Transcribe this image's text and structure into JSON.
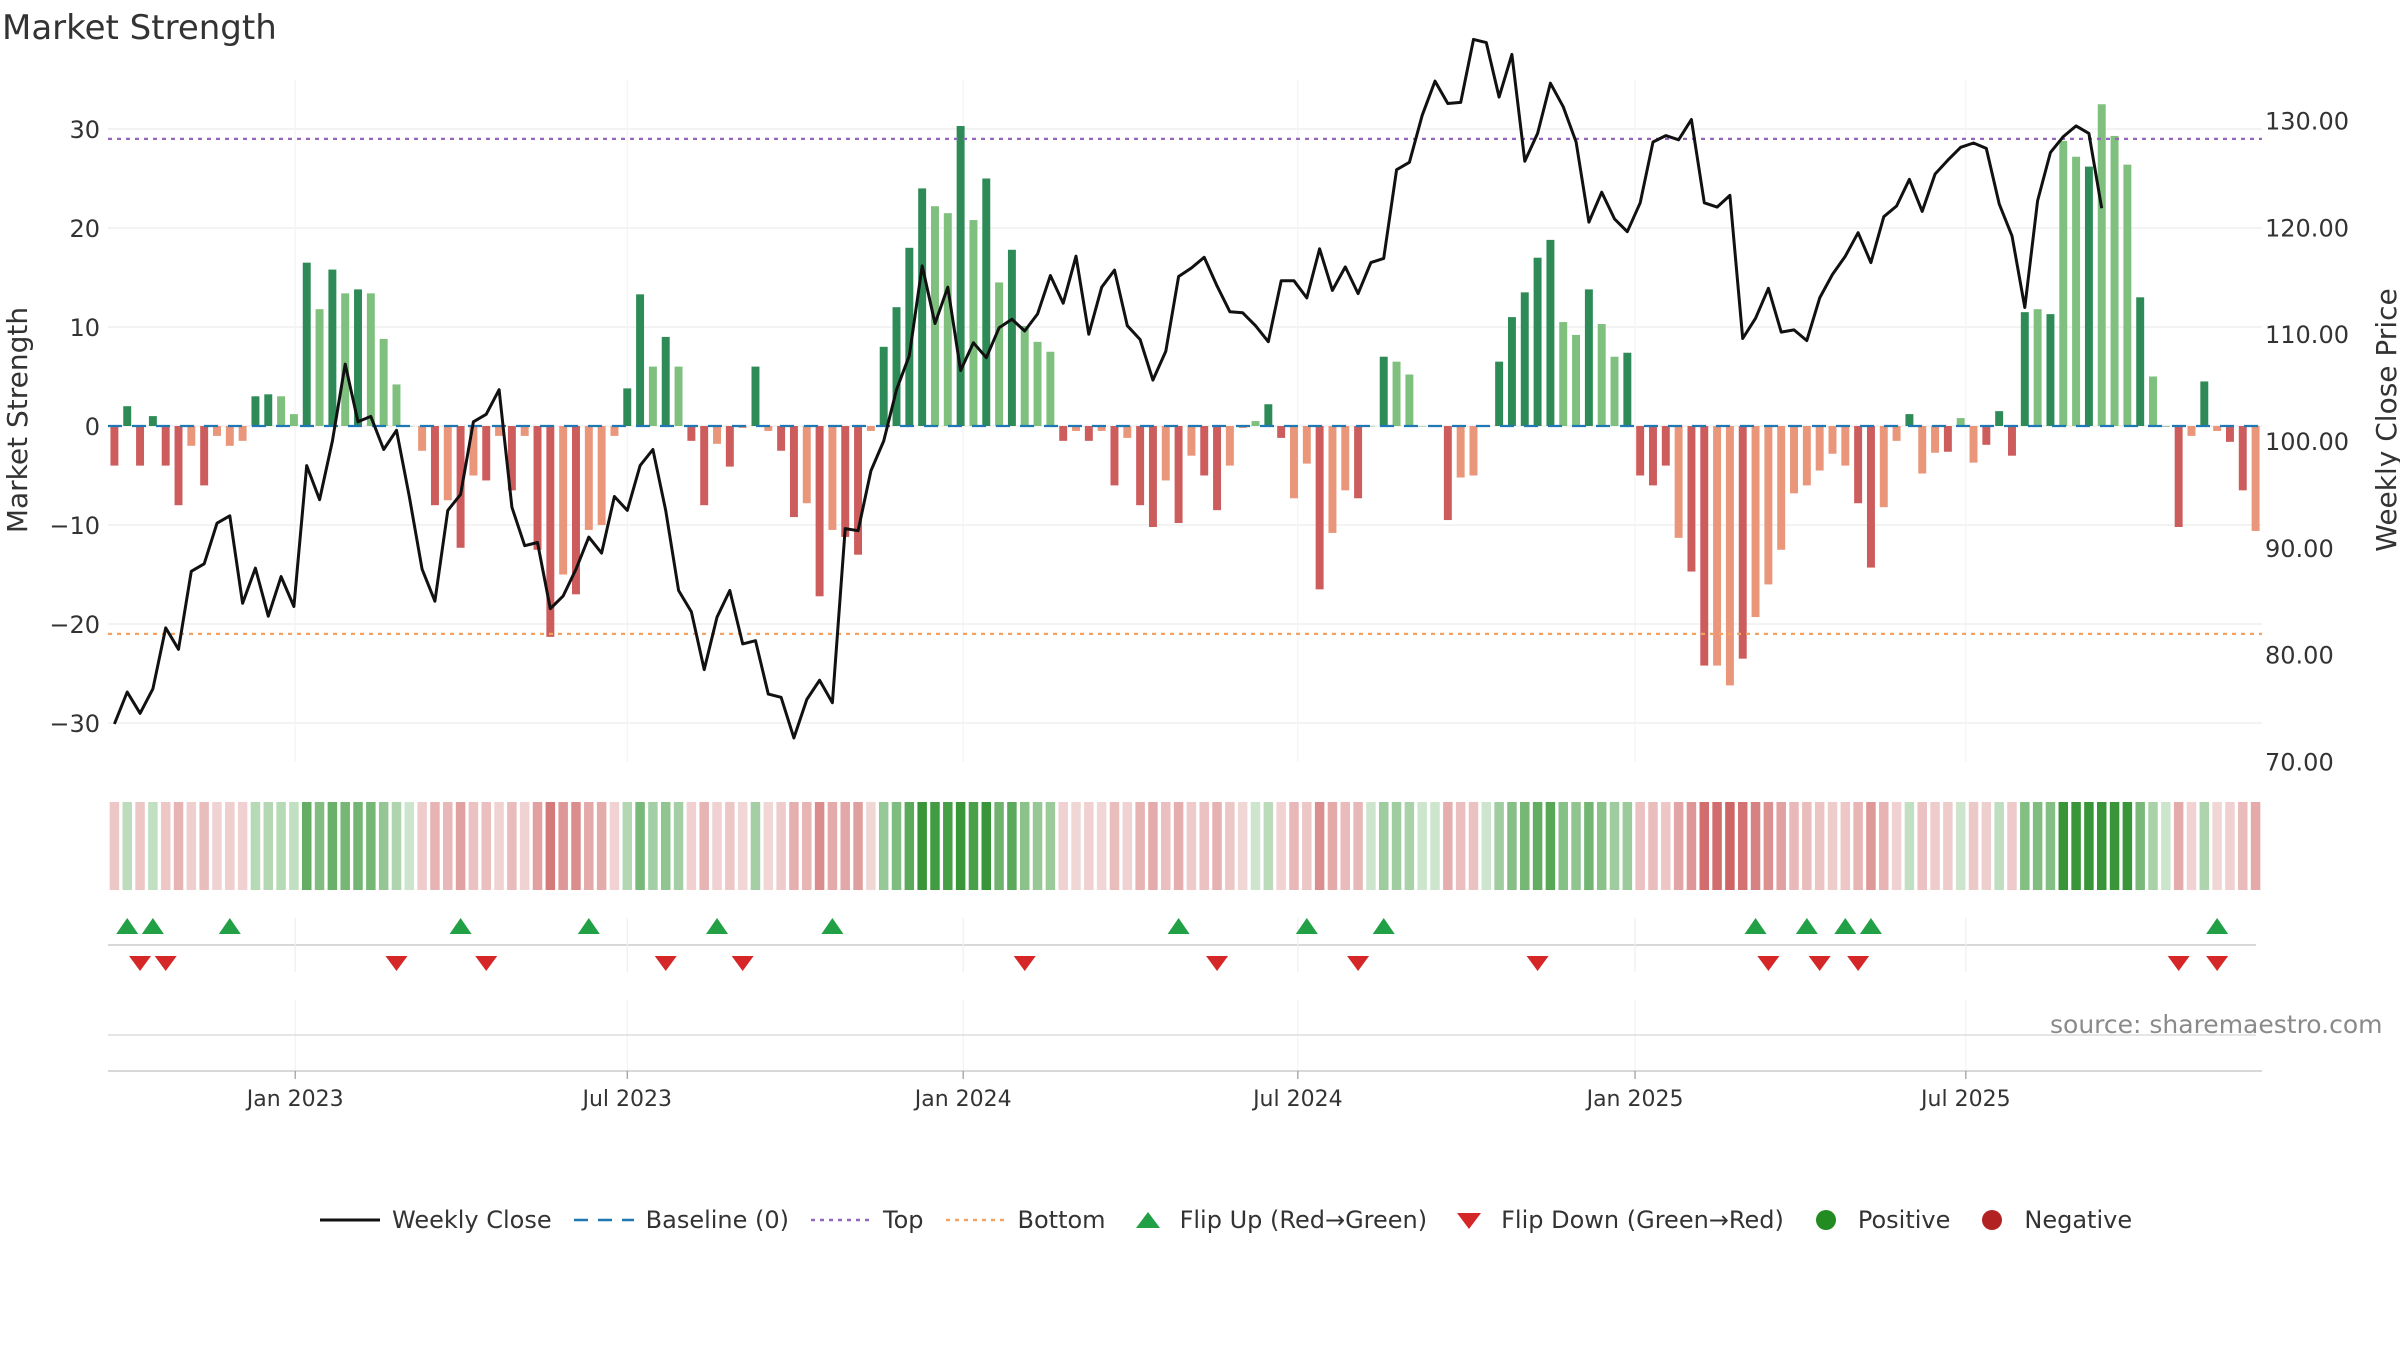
{
  "title": "Market Strength",
  "watermark": "source: sharemaestro.com",
  "colors": {
    "bar_strong_green": "#2e8b57",
    "bar_light_green": "#7fc07f",
    "bar_strong_red": "#cd5c5c",
    "bar_light_red": "#e9967a",
    "price_line": "#111111",
    "baseline": "#1f77b4",
    "top": "#9467bd",
    "bottom": "#f4a261",
    "flip_up": "#22a045",
    "flip_down": "#d62728",
    "positive": "#228b22",
    "negative": "#b22222"
  },
  "chart_data": {
    "type": "bar+line",
    "title": "Market Strength",
    "x_start": "2022-09-18",
    "x_interval": "weekly",
    "xlabel": "",
    "ylabel_left": "Market Strength",
    "ylabel_right": "Weekly Close Price",
    "ylim_left": [
      -35,
      35
    ],
    "ylim_right": [
      67,
      132
    ],
    "yticks_left": [
      30,
      20,
      10,
      0,
      -10,
      -20,
      -30
    ],
    "yticks_left_labels": [
      "30",
      "20",
      "10",
      "0",
      "−10",
      "−20",
      "−30"
    ],
    "yticks_right": [
      130,
      120,
      110,
      100,
      90,
      80,
      70
    ],
    "yticks_right_labels": [
      "130.00",
      "120.00",
      "110.00",
      "100.00",
      "90.00",
      "80.00",
      "70.00"
    ],
    "x_ticks": [
      {
        "label": "Jan 2023",
        "week": 14.6
      },
      {
        "label": "Jul 2023",
        "week": 40.5
      },
      {
        "label": "Jan 2024",
        "week": 66.7
      },
      {
        "label": "Jul 2024",
        "week": 92.8
      },
      {
        "label": "Jan 2025",
        "week": 119.1
      },
      {
        "label": "Jul 2025",
        "week": 144.9
      }
    ],
    "top_level": 29,
    "bottom_level": -21,
    "baseline": 0,
    "strength": [
      -4,
      2,
      -4,
      1,
      -4,
      -8,
      -2,
      -6,
      -1,
      -2,
      -1.5,
      3,
      3.2,
      3,
      1.2,
      16.5,
      11.8,
      15.8,
      13.4,
      13.8,
      13.4,
      8.8,
      4.2,
      0,
      -2.5,
      -8,
      -7.5,
      -12.3,
      -5,
      -5.5,
      -1,
      -6.5,
      -1,
      -12.5,
      -21.3,
      -15,
      -17,
      -10.5,
      -10,
      -1,
      3.8,
      13.3,
      6,
      9,
      6,
      -1.5,
      -8,
      -1.8,
      -4.1,
      -0.2,
      6,
      -0.5,
      -2.5,
      -9.2,
      -7.8,
      -17.2,
      -10.5,
      -11.2,
      -13,
      -0.5,
      8,
      12,
      18,
      24,
      22.2,
      21.5,
      30.3,
      20.8,
      25,
      14.5,
      17.8,
      10.1,
      8.5,
      7.5,
      -1.5,
      -0.5,
      -1.5,
      -0.5,
      -6,
      -1.2,
      -8,
      -10.2,
      -5.5,
      -9.8,
      -3,
      -5,
      -8.5,
      -4,
      -0.2,
      0.5,
      2.2,
      -1.2,
      -7.3,
      -3.8,
      -16.5,
      -10.8,
      -6.5,
      -7.3,
      0,
      7,
      6.5,
      5.2,
      0,
      0,
      -9.5,
      -5.2,
      -5,
      0,
      6.5,
      11,
      13.5,
      17,
      18.8,
      10.5,
      9.2,
      13.8,
      10.3,
      7,
      7.4,
      -5,
      -6,
      -4,
      -11.3,
      -14.7,
      -24.2,
      -24.2,
      -26.2,
      -23.5,
      -19.3,
      -16,
      -12.5,
      -6.8,
      -6,
      -4.5,
      -2.8,
      -4,
      -7.8,
      -14.3,
      -8.2,
      -1.5,
      1.2,
      -4.8,
      -2.7,
      -2.6,
      0.8,
      -3.7,
      -1.9,
      1.5,
      -3,
      11.5,
      11.8,
      11.3,
      28.8,
      27.2,
      26.2,
      32.5,
      29.3,
      26.4,
      13,
      5,
      0,
      -10.2,
      -1,
      4.5,
      -0.5,
      -1.6,
      -6.5,
      -10.6
    ],
    "bar_shade": [
      "strong",
      "strong",
      "strong",
      "strong",
      "strong",
      "strong",
      "light",
      "strong",
      "light",
      "light",
      "light",
      "strong",
      "strong",
      "light",
      "light",
      "strong",
      "light",
      "strong",
      "light",
      "strong",
      "light",
      "light",
      "light",
      "light",
      "light",
      "strong",
      "light",
      "strong",
      "light",
      "strong",
      "light",
      "strong",
      "light",
      "strong",
      "strong",
      "light",
      "strong",
      "light",
      "light",
      "light",
      "strong",
      "strong",
      "light",
      "strong",
      "light",
      "strong",
      "strong",
      "light",
      "strong",
      "light",
      "strong",
      "light",
      "strong",
      "strong",
      "light",
      "strong",
      "light",
      "strong",
      "strong",
      "light",
      "strong",
      "strong",
      "strong",
      "strong",
      "light",
      "light",
      "strong",
      "light",
      "strong",
      "light",
      "strong",
      "light",
      "light",
      "light",
      "strong",
      "light",
      "strong",
      "light",
      "strong",
      "light",
      "strong",
      "strong",
      "light",
      "strong",
      "light",
      "strong",
      "strong",
      "light",
      "light",
      "light",
      "strong",
      "strong",
      "light",
      "light",
      "strong",
      "light",
      "light",
      "strong",
      "light",
      "strong",
      "light",
      "light",
      "light",
      "light",
      "strong",
      "light",
      "light",
      "light",
      "strong",
      "strong",
      "strong",
      "strong",
      "strong",
      "light",
      "light",
      "strong",
      "light",
      "light",
      "strong",
      "strong",
      "strong",
      "strong",
      "light",
      "strong",
      "strong",
      "light",
      "light",
      "strong",
      "light",
      "light",
      "light",
      "light",
      "light",
      "light",
      "light",
      "light",
      "strong",
      "strong",
      "light",
      "light",
      "strong",
      "light",
      "light",
      "strong",
      "light",
      "light",
      "strong",
      "strong",
      "strong",
      "strong",
      "light",
      "strong",
      "light",
      "light",
      "strong",
      "light",
      "light",
      "light",
      "strong",
      "light",
      "strong",
      "strong",
      "light",
      "strong",
      "light",
      "strong",
      "strong"
    ],
    "weekly_close": [
      73.5,
      76.5,
      74.5,
      76.8,
      82.5,
      80.5,
      87.8,
      88.5,
      92.3,
      93.0,
      84.8,
      88.1,
      83.6,
      87.3,
      84.5,
      97.7,
      94.5,
      100.0,
      107.2,
      101.8,
      102.3,
      99.2,
      101.0,
      94.8,
      88.0,
      85.0,
      93.5,
      95.0,
      101.8,
      102.5,
      104.8,
      93.8,
      90.2,
      90.5,
      84.3,
      85.5,
      88.0,
      91.0,
      89.5,
      94.8,
      93.5,
      97.7,
      99.2,
      93.5,
      86.0,
      84.0,
      78.6,
      83.5,
      86.0,
      81.0,
      81.3,
      76.3,
      76.0,
      72.2,
      75.8,
      77.6,
      75.5,
      91.8,
      91.6,
      97.2,
      100.0,
      104.8,
      108.0,
      116.4,
      111.0,
      114.4,
      106.6,
      109.2,
      107.8,
      110.6,
      111.4,
      110.3,
      111.9,
      115.5,
      112.9,
      117.3,
      110.0,
      114.4,
      116.0,
      110.8,
      109.5,
      105.7,
      108.4,
      115.4,
      116.2,
      117.2,
      114.5,
      112.1,
      112.0,
      110.8,
      109.3,
      115.0,
      115.0,
      113.4,
      118.0,
      114.1,
      116.3,
      113.8,
      116.7,
      117.1,
      125.4,
      126.1,
      130.5,
      133.7,
      131.6,
      131.7,
      137.6,
      137.3,
      132.2,
      136.2,
      126.2,
      128.8,
      133.5,
      131.3,
      128.0,
      120.5,
      123.3,
      120.8,
      119.6,
      122.3,
      128.0,
      128.6,
      128.2,
      130.1,
      122.3,
      121.9,
      123.0,
      109.6,
      111.5,
      114.3,
      110.2,
      110.4,
      109.4,
      113.4,
      115.6,
      117.3,
      119.5,
      116.7,
      121.0,
      122.0,
      124.5,
      121.5,
      125.0,
      126.3,
      127.5,
      127.9,
      127.4,
      122.2,
      119.2,
      112.5,
      122.5,
      127.0,
      128.5,
      129.5,
      128.8,
      121.8
    ]
  },
  "flip_up_weeks": [
    1,
    3,
    9,
    27,
    37,
    47,
    56,
    83,
    93,
    99,
    128,
    132,
    135,
    137,
    164
  ],
  "flip_down_weeks": [
    2,
    4,
    22,
    29,
    43,
    49,
    71,
    86,
    97,
    111,
    129,
    133,
    136,
    161,
    164
  ],
  "legend": {
    "weekly_close": "Weekly Close",
    "baseline": "Baseline (0)",
    "top": "Top",
    "bottom": "Bottom",
    "flip_up": "Flip Up (Red→Green)",
    "flip_down": "Flip Down (Green→Red)",
    "positive": "Positive",
    "negative": "Negative"
  }
}
